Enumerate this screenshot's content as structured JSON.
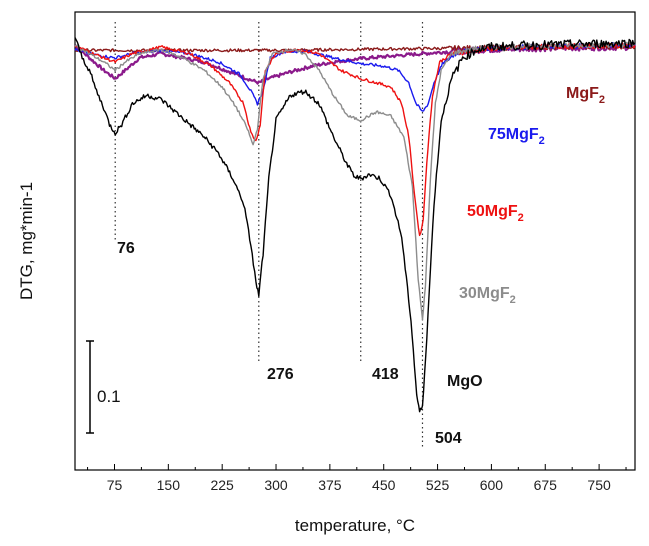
{
  "chart_data": {
    "type": "line",
    "xlabel": "temperature, °C",
    "ylabel": "DTG, mg*min-1",
    "xlim": [
      20,
      800
    ],
    "x_ticks": [
      75,
      150,
      225,
      300,
      375,
      450,
      525,
      600,
      675,
      750
    ],
    "y_ticks_shown": false,
    "scale_bar": {
      "label": "0.1",
      "value": 0.1
    },
    "peak_markers": [
      {
        "x": 76,
        "label": "76"
      },
      {
        "x": 276,
        "label": "276"
      },
      {
        "x": 418,
        "label": "418"
      },
      {
        "x": 504,
        "label": "504"
      }
    ],
    "series": [
      {
        "name": "MgO",
        "color": "#000000",
        "points": [
          [
            20,
            0.02
          ],
          [
            30,
            -0.005
          ],
          [
            40,
            -0.02
          ],
          [
            50,
            -0.045
          ],
          [
            60,
            -0.065
          ],
          [
            68,
            -0.085
          ],
          [
            76,
            -0.095
          ],
          [
            85,
            -0.085
          ],
          [
            100,
            -0.06
          ],
          [
            120,
            -0.05
          ],
          [
            140,
            -0.055
          ],
          [
            160,
            -0.07
          ],
          [
            180,
            -0.085
          ],
          [
            200,
            -0.1
          ],
          [
            220,
            -0.12
          ],
          [
            240,
            -0.15
          ],
          [
            255,
            -0.18
          ],
          [
            265,
            -0.23
          ],
          [
            272,
            -0.275
          ],
          [
            276,
            -0.29
          ],
          [
            282,
            -0.24
          ],
          [
            290,
            -0.15
          ],
          [
            300,
            -0.08
          ],
          [
            320,
            -0.05
          ],
          [
            340,
            -0.045
          ],
          [
            360,
            -0.06
          ],
          [
            380,
            -0.1
          ],
          [
            400,
            -0.135
          ],
          [
            410,
            -0.148
          ],
          [
            418,
            -0.15
          ],
          [
            430,
            -0.145
          ],
          [
            445,
            -0.15
          ],
          [
            460,
            -0.17
          ],
          [
            475,
            -0.22
          ],
          [
            488,
            -0.32
          ],
          [
            496,
            -0.41
          ],
          [
            500,
            -0.43
          ],
          [
            504,
            -0.425
          ],
          [
            510,
            -0.34
          ],
          [
            520,
            -0.18
          ],
          [
            530,
            -0.08
          ],
          [
            545,
            -0.03
          ],
          [
            560,
            -0.005
          ],
          [
            580,
            0.005
          ],
          [
            600,
            0.008
          ],
          [
            650,
            0.01
          ],
          [
            700,
            0.011
          ],
          [
            750,
            0.012
          ],
          [
            800,
            0.013
          ]
        ]
      },
      {
        "name": "30MgF2",
        "color": "#8c8c8c",
        "points": [
          [
            20,
            0.01
          ],
          [
            40,
            0.0
          ],
          [
            60,
            -0.01
          ],
          [
            76,
            -0.02
          ],
          [
            90,
            -0.01
          ],
          [
            110,
            0.0
          ],
          [
            140,
            0.005
          ],
          [
            170,
            -0.005
          ],
          [
            200,
            -0.02
          ],
          [
            225,
            -0.04
          ],
          [
            245,
            -0.065
          ],
          [
            260,
            -0.09
          ],
          [
            268,
            -0.11
          ],
          [
            274,
            -0.09
          ],
          [
            282,
            -0.03
          ],
          [
            295,
            0.0
          ],
          [
            320,
            0.005
          ],
          [
            340,
            0.0
          ],
          [
            360,
            -0.02
          ],
          [
            380,
            -0.05
          ],
          [
            400,
            -0.075
          ],
          [
            418,
            -0.08
          ],
          [
            440,
            -0.07
          ],
          [
            460,
            -0.075
          ],
          [
            478,
            -0.1
          ],
          [
            490,
            -0.16
          ],
          [
            498,
            -0.27
          ],
          [
            504,
            -0.32
          ],
          [
            508,
            -0.28
          ],
          [
            515,
            -0.15
          ],
          [
            522,
            -0.06
          ],
          [
            530,
            -0.02
          ],
          [
            545,
            0.0
          ],
          [
            570,
            0.005
          ],
          [
            600,
            0.008
          ],
          [
            700,
            0.01
          ],
          [
            800,
            0.011
          ]
        ]
      },
      {
        "name": "50MgF2",
        "color": "#ee1111",
        "points": [
          [
            20,
            0.01
          ],
          [
            40,
            0.002
          ],
          [
            60,
            -0.005
          ],
          [
            76,
            -0.01
          ],
          [
            100,
            0.0
          ],
          [
            140,
            0.008
          ],
          [
            180,
            0.0
          ],
          [
            210,
            -0.015
          ],
          [
            235,
            -0.035
          ],
          [
            255,
            -0.06
          ],
          [
            265,
            -0.095
          ],
          [
            272,
            -0.105
          ],
          [
            278,
            -0.085
          ],
          [
            285,
            -0.02
          ],
          [
            300,
            0.0
          ],
          [
            330,
            0.005
          ],
          [
            360,
            0.0
          ],
          [
            390,
            -0.02
          ],
          [
            418,
            -0.03
          ],
          [
            440,
            -0.035
          ],
          [
            460,
            -0.04
          ],
          [
            475,
            -0.06
          ],
          [
            485,
            -0.1
          ],
          [
            493,
            -0.17
          ],
          [
            500,
            -0.22
          ],
          [
            505,
            -0.2
          ],
          [
            510,
            -0.13
          ],
          [
            518,
            -0.05
          ],
          [
            528,
            -0.01
          ],
          [
            545,
            0.0
          ],
          [
            600,
            0.006
          ],
          [
            700,
            0.009
          ],
          [
            800,
            0.01
          ]
        ]
      },
      {
        "name": "75MgF2",
        "color": "#1a1aee",
        "points": [
          [
            20,
            0.005
          ],
          [
            40,
            0.0
          ],
          [
            60,
            -0.003
          ],
          [
            76,
            -0.005
          ],
          [
            100,
            0.0
          ],
          [
            140,
            0.004
          ],
          [
            180,
            0.0
          ],
          [
            220,
            -0.01
          ],
          [
            250,
            -0.025
          ],
          [
            265,
            -0.045
          ],
          [
            274,
            -0.06
          ],
          [
            282,
            -0.045
          ],
          [
            292,
            -0.005
          ],
          [
            310,
            0.002
          ],
          [
            340,
            0.003
          ],
          [
            380,
            -0.005
          ],
          [
            418,
            -0.012
          ],
          [
            450,
            -0.015
          ],
          [
            470,
            -0.02
          ],
          [
            485,
            -0.035
          ],
          [
            495,
            -0.06
          ],
          [
            504,
            -0.07
          ],
          [
            512,
            -0.06
          ],
          [
            520,
            -0.035
          ],
          [
            532,
            -0.012
          ],
          [
            550,
            0.0
          ],
          [
            580,
            0.006
          ],
          [
            650,
            0.008
          ],
          [
            750,
            0.01
          ],
          [
            800,
            0.011
          ]
        ]
      },
      {
        "name": "MgF2",
        "color": "#8b1a1a",
        "points": [
          [
            20,
            0.004
          ],
          [
            100,
            0.004
          ],
          [
            200,
            0.004
          ],
          [
            300,
            0.004
          ],
          [
            400,
            0.005
          ],
          [
            500,
            0.006
          ],
          [
            600,
            0.007
          ],
          [
            700,
            0.008
          ],
          [
            800,
            0.009
          ]
        ]
      },
      {
        "name": "",
        "color": "#8b1a8b",
        "points": [
          [
            20,
            0.01
          ],
          [
            40,
            -0.005
          ],
          [
            60,
            -0.02
          ],
          [
            76,
            -0.03
          ],
          [
            90,
            -0.02
          ],
          [
            110,
            -0.005
          ],
          [
            140,
            0.0
          ],
          [
            170,
            -0.005
          ],
          [
            200,
            -0.01
          ],
          [
            230,
            -0.02
          ],
          [
            260,
            -0.03
          ],
          [
            276,
            -0.035
          ],
          [
            290,
            -0.03
          ],
          [
            320,
            -0.022
          ],
          [
            350,
            -0.015
          ],
          [
            380,
            -0.01
          ],
          [
            418,
            -0.006
          ],
          [
            460,
            -0.003
          ],
          [
            504,
            0.0
          ],
          [
            550,
            0.003
          ],
          [
            600,
            0.005
          ],
          [
            700,
            0.007
          ],
          [
            800,
            0.008
          ]
        ]
      }
    ],
    "labels": [
      {
        "text": "MgO",
        "color": "#111111"
      },
      {
        "text": "30MgF",
        "sub": "2",
        "color": "#8c8c8c"
      },
      {
        "text": "50MgF",
        "sub": "2",
        "color": "#ee1111"
      },
      {
        "text": "75MgF",
        "sub": "2",
        "color": "#1a1aee"
      },
      {
        "text": "MgF",
        "sub": "2",
        "color": "#8b1a1a"
      }
    ]
  }
}
